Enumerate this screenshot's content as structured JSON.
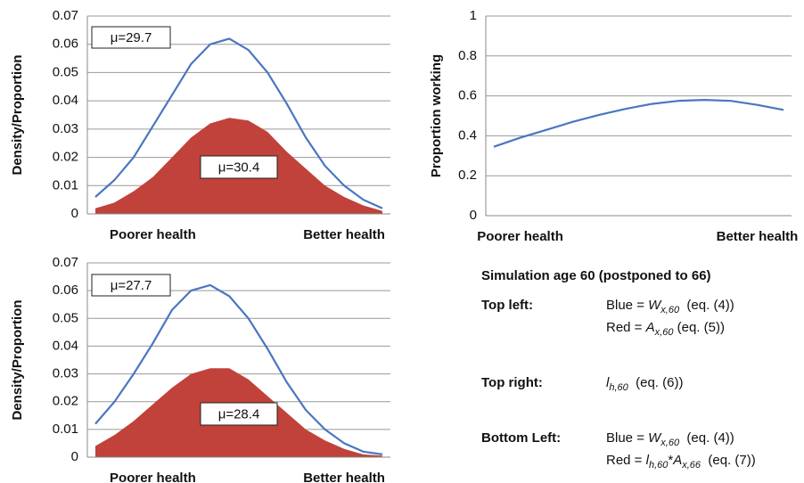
{
  "chart_data": [
    {
      "type": "area_line",
      "ylabel": "Density/Proportion",
      "categories": [
        null,
        null,
        null,
        "Poorer health",
        null,
        null,
        null,
        null,
        null,
        null,
        null,
        null,
        null,
        "Better health",
        null,
        null
      ],
      "series": [
        {
          "color": "#c0423a",
          "style": "area",
          "values": [
            0.002,
            0.004,
            0.008,
            0.013,
            0.02,
            0.027,
            0.032,
            0.034,
            0.033,
            0.029,
            0.022,
            0.016,
            0.01,
            0.006,
            0.003,
            0.001
          ]
        },
        {
          "color": "#4a76c0",
          "style": "line",
          "values": [
            0.006,
            0.012,
            0.02,
            0.031,
            0.042,
            0.053,
            0.06,
            0.062,
            0.058,
            0.05,
            0.039,
            0.027,
            0.017,
            0.01,
            0.005,
            0.002
          ]
        }
      ],
      "annotations": [
        "μ=29.7",
        "μ=30.4"
      ],
      "ylim": [
        0,
        0.07
      ],
      "yticks": [
        0,
        0.01,
        0.02,
        0.03,
        0.04,
        0.05,
        0.06,
        0.07
      ],
      "grid": true
    },
    {
      "type": "area_line",
      "ylabel": "Proportion working",
      "categories": [
        null,
        "Poorer health",
        null,
        null,
        null,
        null,
        null,
        null,
        null,
        null,
        "Better health",
        null
      ],
      "series": [
        {
          "color": "#4a76c0",
          "style": "line",
          "values": [
            0.345,
            0.39,
            0.43,
            0.47,
            0.505,
            0.535,
            0.56,
            0.575,
            0.58,
            0.575,
            0.555,
            0.53
          ]
        }
      ],
      "annotations": [],
      "ylim": [
        0,
        1
      ],
      "yticks": [
        0,
        0.2,
        0.4,
        0.6,
        0.8,
        1
      ],
      "grid": true
    },
    {
      "type": "area_line",
      "ylabel": "Density/Proportion",
      "categories": [
        null,
        null,
        null,
        "Poorer health",
        null,
        null,
        null,
        null,
        null,
        null,
        null,
        null,
        null,
        "Better health",
        null,
        null
      ],
      "series": [
        {
          "color": "#c0423a",
          "style": "area",
          "values": [
            0.004,
            0.008,
            0.013,
            0.019,
            0.025,
            0.03,
            0.032,
            0.032,
            0.028,
            0.022,
            0.016,
            0.01,
            0.006,
            0.003,
            0.001,
            0.0005
          ]
        },
        {
          "color": "#4a76c0",
          "style": "line",
          "values": [
            0.012,
            0.02,
            0.03,
            0.041,
            0.053,
            0.06,
            0.062,
            0.058,
            0.05,
            0.039,
            0.027,
            0.017,
            0.01,
            0.005,
            0.002,
            0.001
          ]
        }
      ],
      "annotations": [
        "μ=27.7",
        "μ=28.4"
      ],
      "ylim": [
        0,
        0.07
      ],
      "yticks": [
        0,
        0.01,
        0.02,
        0.03,
        0.04,
        0.05,
        0.06,
        0.07
      ],
      "grid": true
    }
  ],
  "notes": {
    "title": "Simulation age 60 (postponed to 66)",
    "rows": [
      {
        "label": "Top left:",
        "lines": [
          [
            {
              "t": "Blue = "
            },
            {
              "t": "W",
              "i": true
            },
            {
              "t": "x,60",
              "i": true,
              "sub": true
            },
            {
              "t": "  (eq. (4))"
            }
          ],
          [
            {
              "t": "Red = "
            },
            {
              "t": "A",
              "i": true
            },
            {
              "t": "x,60",
              "i": true,
              "sub": true
            },
            {
              "t": " (eq. (5))"
            }
          ]
        ]
      },
      {
        "label": "Top right:",
        "lines": [
          [
            {
              "t": "l",
              "i": true
            },
            {
              "t": "h,60",
              "i": true,
              "sub": true
            },
            {
              "t": "  (eq. (6))"
            }
          ]
        ]
      },
      {
        "label": "Bottom Left:",
        "lines": [
          [
            {
              "t": "Blue = "
            },
            {
              "t": "W",
              "i": true
            },
            {
              "t": "x,60",
              "i": true,
              "sub": true
            },
            {
              "t": "  (eq. (4))"
            }
          ],
          [
            {
              "t": "Red = "
            },
            {
              "t": "l",
              "i": true
            },
            {
              "t": "h,60",
              "i": true,
              "sub": true
            },
            {
              "t": "*"
            },
            {
              "t": "A",
              "i": true
            },
            {
              "t": "x,66",
              "i": true,
              "sub": true
            },
            {
              "t": "  (eq. (7))"
            }
          ]
        ]
      }
    ]
  }
}
